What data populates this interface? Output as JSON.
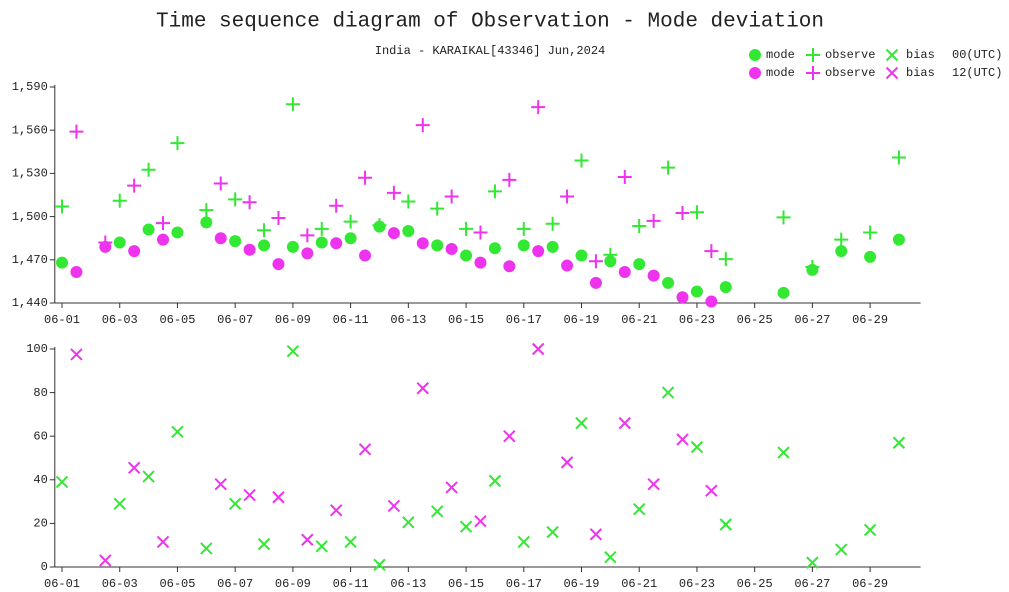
{
  "chart_data": [
    {
      "type": "scatter",
      "title": "Time sequence diagram of Observation - Mode deviation",
      "subtitle": "India - KARAIKAL[43346] Jun,2024",
      "legend": [
        {
          "group": "00(UTC)",
          "color": "#33e833",
          "entries": [
            "mode",
            "observe",
            "bias"
          ]
        },
        {
          "group": "12(UTC)",
          "color": "#ee33ee",
          "entries": [
            "mode",
            "observe",
            "bias"
          ]
        }
      ],
      "xlim": [
        0.75,
        30.75
      ],
      "xticks": [
        {
          "value": 1,
          "label": "06-01"
        },
        {
          "value": 3,
          "label": "06-03"
        },
        {
          "value": 5,
          "label": "06-05"
        },
        {
          "value": 7,
          "label": "06-07"
        },
        {
          "value": 9,
          "label": "06-09"
        },
        {
          "value": 11,
          "label": "06-11"
        },
        {
          "value": 13,
          "label": "06-13"
        },
        {
          "value": 15,
          "label": "06-15"
        },
        {
          "value": 17,
          "label": "06-17"
        },
        {
          "value": 19,
          "label": "06-19"
        },
        {
          "value": 21,
          "label": "06-21"
        },
        {
          "value": 23,
          "label": "06-23"
        },
        {
          "value": 25,
          "label": "06-25"
        },
        {
          "value": 27,
          "label": "06-27"
        },
        {
          "value": 29,
          "label": "06-29"
        }
      ],
      "ylim": [
        1440,
        1590
      ],
      "yticks": [
        {
          "value": 1440,
          "label": "1,440"
        },
        {
          "value": 1470,
          "label": "1,470"
        },
        {
          "value": 1500,
          "label": "1,500"
        },
        {
          "value": 1530,
          "label": "1,530"
        },
        {
          "value": 1560,
          "label": "1,560"
        },
        {
          "value": 1590,
          "label": "1,590"
        }
      ],
      "series": [
        {
          "marker": "circle",
          "color": "#33e833",
          "x": [
            1,
            3,
            4,
            5,
            6,
            7,
            8,
            9,
            10,
            11,
            12,
            13,
            14,
            15,
            16,
            17,
            18,
            19,
            20,
            21,
            22,
            23,
            24,
            26,
            27,
            28,
            29,
            30
          ],
          "values": [
            1468,
            1482,
            1491,
            1489,
            1496,
            1483,
            1480,
            1479,
            1482,
            1485,
            1493,
            1490,
            1480,
            1473,
            1478,
            1480,
            1479,
            1473,
            1469,
            1467,
            1454,
            1448,
            1451,
            1447,
            1463,
            1476,
            1472,
            1484
          ]
        },
        {
          "marker": "plus",
          "color": "#33e833",
          "x": [
            1,
            3,
            4,
            5,
            6,
            7,
            8,
            9,
            10,
            11,
            12,
            13,
            14,
            15,
            16,
            17,
            18,
            19,
            20,
            21,
            22,
            23,
            24,
            26,
            27,
            28,
            29,
            30
          ],
          "values": [
            1507,
            1511,
            1532.5,
            1551,
            1504.5,
            1512,
            1490.5,
            1578,
            1491.5,
            1496.5,
            1494,
            1510.5,
            1505.5,
            1491.5,
            1517.5,
            1491.5,
            1495,
            1539,
            1473.5,
            1493.5,
            1534,
            1503,
            1470.5,
            1499.5,
            1465,
            1484,
            1489,
            1541
          ]
        },
        {
          "marker": "circle",
          "color": "#ee33ee",
          "x": [
            1.5,
            2.5,
            3.5,
            4.5,
            6.5,
            7.5,
            8.5,
            9.5,
            10.5,
            11.5,
            12.5,
            13.5,
            14.5,
            15.5,
            16.5,
            17.5,
            18.5,
            19.5,
            20.5,
            21.5,
            22.5,
            23.5
          ],
          "values": [
            1461.5,
            1479,
            1476,
            1484,
            1485,
            1477,
            1467,
            1474.5,
            1481.5,
            1473,
            1488.5,
            1481.5,
            1477.5,
            1468,
            1465.5,
            1476,
            1466,
            1454,
            1461.5,
            1459,
            1444,
            1441
          ]
        },
        {
          "marker": "plus",
          "color": "#ee33ee",
          "x": [
            1.5,
            2.5,
            3.5,
            4.5,
            6.5,
            7.5,
            8.5,
            9.5,
            10.5,
            11.5,
            12.5,
            13.5,
            14.5,
            15.5,
            16.5,
            17.5,
            18.5,
            19.5,
            20.5,
            21.5,
            22.5,
            23.5
          ],
          "values": [
            1559,
            1482,
            1521.5,
            1495.5,
            1523,
            1510,
            1499,
            1487,
            1507.5,
            1527,
            1516.5,
            1563.5,
            1514,
            1489,
            1525.5,
            1576,
            1514,
            1469,
            1527.5,
            1497,
            1502.5,
            1476
          ]
        }
      ]
    },
    {
      "type": "scatter",
      "xlim": [
        0.75,
        30.75
      ],
      "xticks": [
        {
          "value": 1,
          "label": "06-01"
        },
        {
          "value": 3,
          "label": "06-03"
        },
        {
          "value": 5,
          "label": "06-05"
        },
        {
          "value": 7,
          "label": "06-07"
        },
        {
          "value": 9,
          "label": "06-09"
        },
        {
          "value": 11,
          "label": "06-11"
        },
        {
          "value": 13,
          "label": "06-13"
        },
        {
          "value": 15,
          "label": "06-15"
        },
        {
          "value": 17,
          "label": "06-17"
        },
        {
          "value": 19,
          "label": "06-19"
        },
        {
          "value": 21,
          "label": "06-21"
        },
        {
          "value": 23,
          "label": "06-23"
        },
        {
          "value": 25,
          "label": "06-25"
        },
        {
          "value": 27,
          "label": "06-27"
        },
        {
          "value": 29,
          "label": "06-29"
        }
      ],
      "ylim": [
        0,
        100
      ],
      "yticks": [
        0,
        20,
        40,
        60,
        80,
        100
      ],
      "series": [
        {
          "marker": "cross",
          "color": "#33e833",
          "x": [
            1,
            3,
            4,
            5,
            6,
            7,
            8,
            9,
            10,
            11,
            12,
            13,
            14,
            15,
            16,
            17,
            18,
            19,
            20,
            21,
            22,
            23,
            24,
            26,
            27,
            28,
            29,
            30
          ],
          "values": [
            39,
            29,
            41.5,
            62,
            8.5,
            29,
            10.5,
            99,
            9.5,
            11.5,
            1,
            20.5,
            25.5,
            18.5,
            39.5,
            11.5,
            16,
            66,
            4.5,
            26.5,
            80,
            55,
            19.5,
            52.5,
            2,
            8,
            17,
            57
          ]
        },
        {
          "marker": "cross",
          "color": "#ee33ee",
          "x": [
            1.5,
            2.5,
            3.5,
            4.5,
            6.5,
            7.5,
            8.5,
            9.5,
            10.5,
            11.5,
            12.5,
            13.5,
            14.5,
            15.5,
            16.5,
            17.5,
            18.5,
            19.5,
            20.5,
            21.5,
            22.5,
            23.5
          ],
          "values": [
            97.5,
            3,
            45.5,
            11.5,
            38,
            33,
            32,
            12.5,
            26,
            54,
            28,
            82,
            36.5,
            21,
            60,
            100,
            48,
            15,
            66,
            38,
            58.5,
            35
          ]
        }
      ]
    }
  ]
}
